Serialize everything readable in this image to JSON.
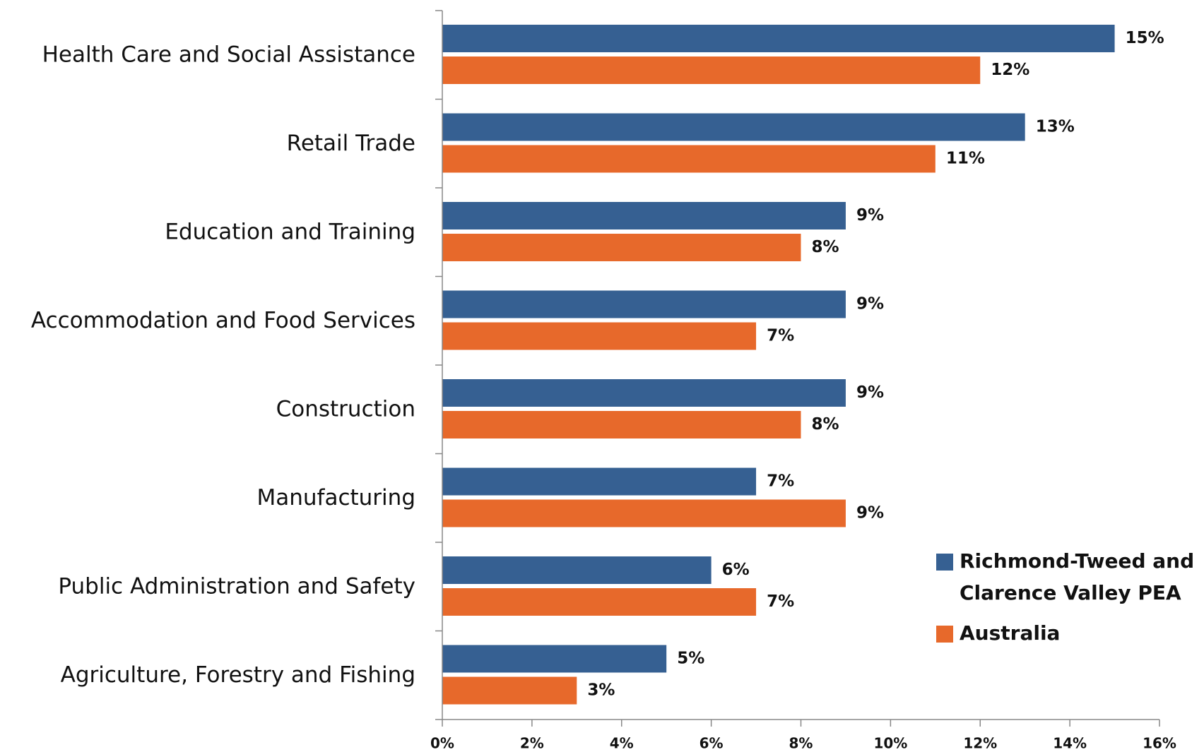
{
  "chart_data": {
    "type": "hbar",
    "categories": [
      "Health Care and Social Assistance",
      "Retail Trade",
      "Education and Training",
      "Accommodation and Food Services",
      "Construction",
      "Manufacturing",
      "Public Administration and Safety",
      "Agriculture, Forestry and Fishing"
    ],
    "series": [
      {
        "name": "Richmond-Tweed and Clarence Valley PEA",
        "color": "#366092",
        "values": [
          15,
          13,
          9,
          9,
          9,
          7,
          6,
          5
        ],
        "value_labels": [
          "15%",
          "13%",
          "9%",
          "9%",
          "9%",
          "7%",
          "6%",
          "5%"
        ]
      },
      {
        "name": "Australia",
        "color": "#e7692b",
        "values": [
          12,
          11,
          8,
          7,
          8,
          9,
          7,
          3
        ],
        "value_labels": [
          "12%",
          "11%",
          "8%",
          "7%",
          "8%",
          "9%",
          "7%",
          "3%"
        ]
      }
    ],
    "xlim": [
      0,
      16
    ],
    "xticks": [
      {
        "value": 0,
        "label": "0%"
      },
      {
        "value": 2,
        "label": "2%"
      },
      {
        "value": 4,
        "label": "4%"
      },
      {
        "value": 6,
        "label": "6%"
      },
      {
        "value": 8,
        "label": "8%"
      },
      {
        "value": 10,
        "label": "10%"
      },
      {
        "value": 12,
        "label": "12%"
      },
      {
        "value": 14,
        "label": "14%"
      },
      {
        "value": 16,
        "label": "16%"
      }
    ],
    "legend": "right"
  }
}
